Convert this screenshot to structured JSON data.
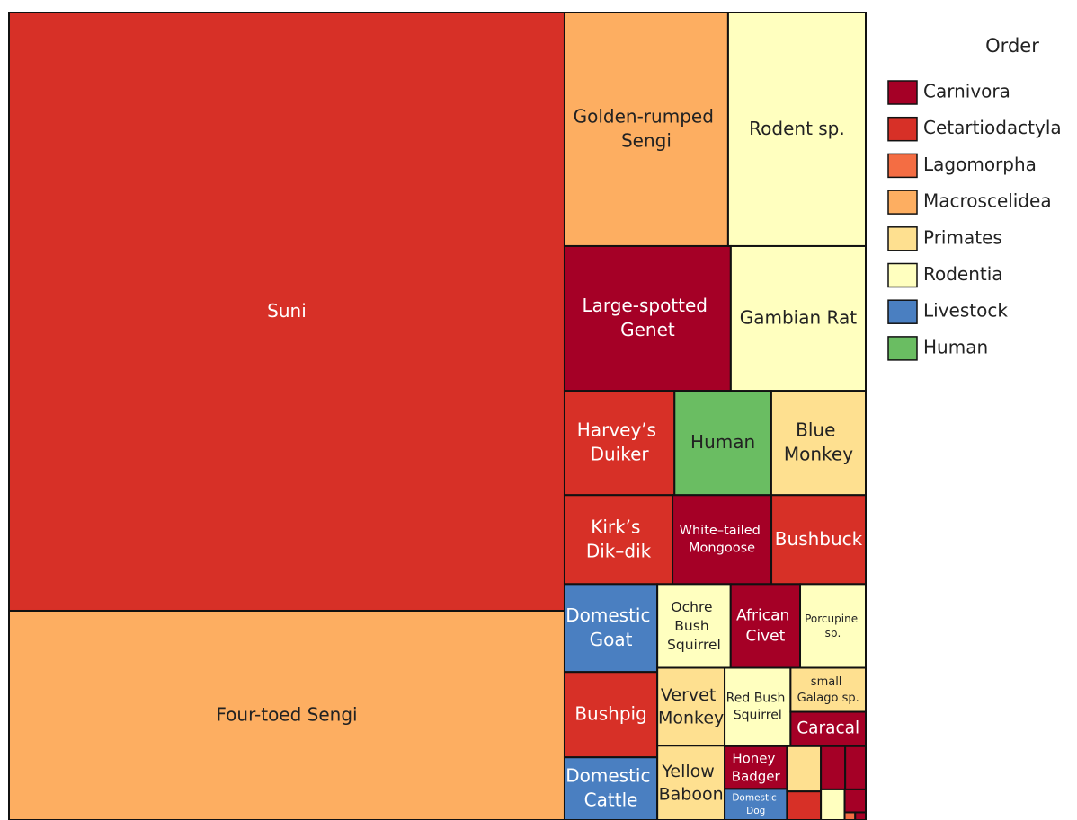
{
  "chart_data": {
    "type": "treemap",
    "legend_title": "Order",
    "legend": [
      {
        "name": "Carnivora",
        "color": "#a50026"
      },
      {
        "name": "Cetartiodactyla",
        "color": "#d73027"
      },
      {
        "name": "Lagomorpha",
        "color": "#f46d43"
      },
      {
        "name": "Macroscelidea",
        "color": "#fdae61"
      },
      {
        "name": "Primates",
        "color": "#fee090"
      },
      {
        "name": "Rodentia",
        "color": "#ffffbf"
      },
      {
        "name": "Livestock",
        "color": "#4a7fc1"
      },
      {
        "name": "Human",
        "color": "#6abd62"
      }
    ],
    "categories": [
      "Suni",
      "Four-toed Sengi",
      "Golden-rumped Sengi",
      "Rodent sp.",
      "Large-spotted Genet",
      "Gambian Rat",
      "Harvey’s Duiker",
      "Human",
      "Blue Monkey",
      "Kirk’s Dik–dik",
      "White–tailed Mongoose",
      "Bushbuck",
      "Domestic Goat",
      "Bushpig",
      "Domestic Cattle",
      "Ochre Bush Squirrel",
      "African Civet",
      "Porcupine sp.",
      "Vervet Monkey",
      "Yellow Baboon",
      "Red Bush Squirrel",
      "small Galago sp.",
      "Caracal",
      "Honey Badger",
      "Domestic Dog",
      null,
      null,
      null,
      null,
      null,
      null,
      null,
      null
    ],
    "values": [
      4116,
      1440,
      473,
      398,
      298,
      242,
      142,
      125,
      122,
      119,
      109,
      104,
      101,
      98,
      72,
      76,
      72,
      68,
      65,
      62,
      64,
      41,
      32,
      33,
      24,
      19,
      12,
      13,
      11,
      9,
      6,
      1,
      1
    ],
    "orders": [
      "Cetartiodactyla",
      "Macroscelidea",
      "Macroscelidea",
      "Rodentia",
      "Carnivora",
      "Rodentia",
      "Cetartiodactyla",
      "Human",
      "Primates",
      "Cetartiodactyla",
      "Carnivora",
      "Cetartiodactyla",
      "Livestock",
      "Cetartiodactyla",
      "Livestock",
      "Rodentia",
      "Carnivora",
      "Rodentia",
      "Primates",
      "Primates",
      "Rodentia",
      "Primates",
      "Carnivora",
      "Carnivora",
      "Livestock",
      "Primates",
      "Cetartiodactyla",
      "Carnivora",
      "Carnivora",
      "Rodentia",
      "Carnivora",
      "Lagomorpha",
      "Carnivora"
    ]
  }
}
